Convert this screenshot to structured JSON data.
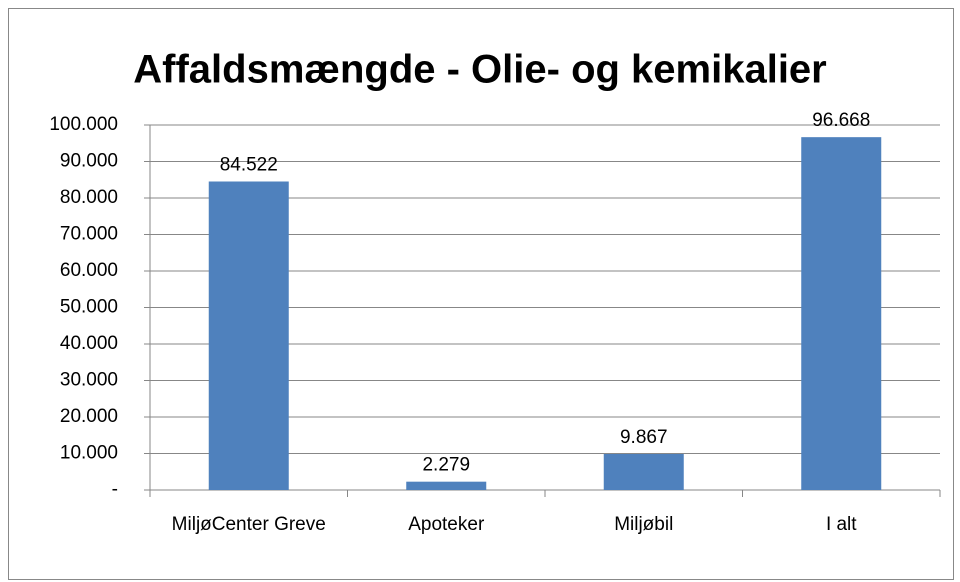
{
  "chart_data": {
    "type": "bar",
    "title": "Affaldsmængde - Olie- og kemikalier",
    "categories": [
      "MiljøCenter Greve",
      "Apoteker",
      "Miljøbil",
      "I alt"
    ],
    "values": [
      84522,
      2279,
      9867,
      96668
    ],
    "value_labels": [
      "84.522",
      "2.279",
      "9.867",
      "96.668"
    ],
    "color": "#4f81bd",
    "ylim": [
      0,
      100000
    ],
    "yticks": [
      {
        "value": 0,
        "label": "-"
      },
      {
        "value": 10000,
        "label": "10.000"
      },
      {
        "value": 20000,
        "label": "20.000"
      },
      {
        "value": 30000,
        "label": "30.000"
      },
      {
        "value": 40000,
        "label": "40.000"
      },
      {
        "value": 50000,
        "label": "50.000"
      },
      {
        "value": 60000,
        "label": "60.000"
      },
      {
        "value": 70000,
        "label": "70.000"
      },
      {
        "value": 80000,
        "label": "80.000"
      },
      {
        "value": 90000,
        "label": "90.000"
      },
      {
        "value": 100000,
        "label": "100.000"
      }
    ],
    "grid": true
  }
}
